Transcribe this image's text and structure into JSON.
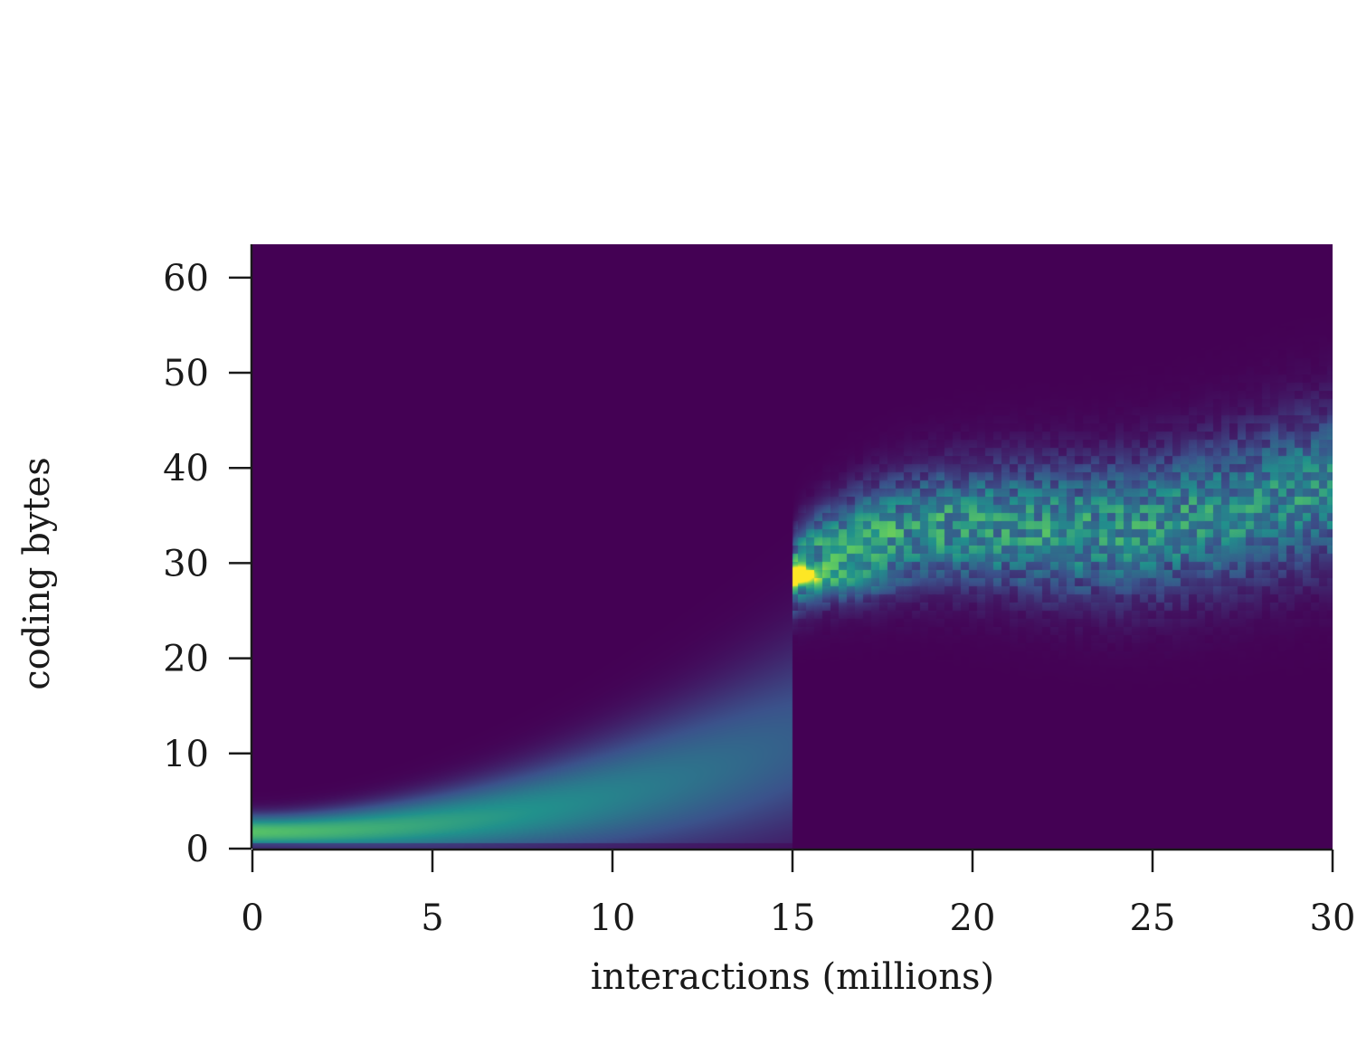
{
  "chart_data": {
    "type": "heatmap",
    "title": "",
    "xlabel": "interactions (millions)",
    "ylabel": "coding bytes",
    "xlim": [
      0,
      30
    ],
    "ylim": [
      0,
      63.5
    ],
    "x_ticks": [
      0,
      5,
      10,
      15,
      20,
      25,
      30
    ],
    "y_ticks": [
      0,
      10,
      20,
      30,
      40,
      50,
      60
    ],
    "colormap": [
      "#440154",
      "#3b528b",
      "#21918c",
      "#5ec962",
      "#fde725"
    ],
    "background_color": "#440154",
    "grid": false,
    "legend": "none",
    "density_segments": [
      {
        "x_range": [
          0,
          15
        ],
        "center_start": 1.8,
        "center_end": 11.0,
        "spread_start": 1.2,
        "spread_end": 7.0,
        "peak_start": 0.72,
        "peak_end": 0.3
      },
      {
        "x_range": [
          15,
          30
        ],
        "center_start": 28.5,
        "center_end": 36.5,
        "spread_start": 2.5,
        "spread_end": 5.5,
        "peak_start": 0.55,
        "peak_end": 0.45,
        "hotspot": {
          "x": 15.1,
          "y": 28.7,
          "value": 1.0
        }
      }
    ]
  }
}
